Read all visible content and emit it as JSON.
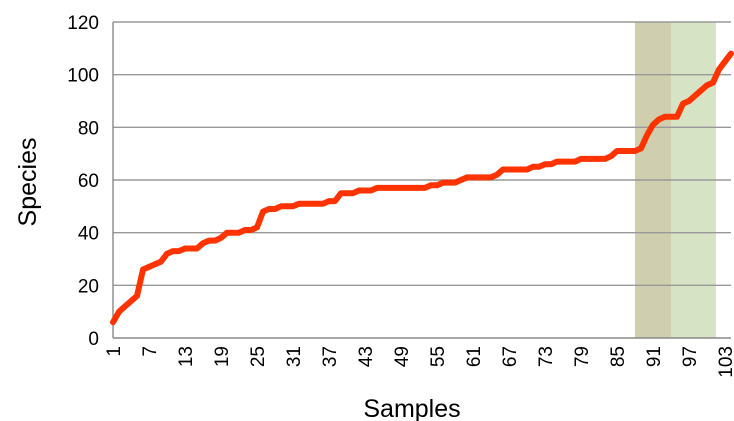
{
  "chart_data": {
    "type": "line",
    "title": "",
    "xlabel": "Samples",
    "ylabel": "Species",
    "ylim": [
      0,
      120
    ],
    "yticks": [
      0,
      20,
      40,
      60,
      80,
      100,
      120
    ],
    "xlim": [
      1,
      104
    ],
    "xtick_labels": [
      "1",
      "7",
      "13",
      "19",
      "25",
      "31",
      "37",
      "43",
      "49",
      "55",
      "61",
      "67",
      "73",
      "79",
      "85",
      "91",
      "97",
      "103"
    ],
    "grid": "horizontal",
    "legend": "none",
    "colors": {
      "line": "#ff3300",
      "highlight_dark": "#cfcfb0",
      "highlight_light": "#d6e3c4"
    },
    "highlight_bands": [
      {
        "from": 88,
        "to": 94,
        "color": "highlight_dark"
      },
      {
        "from": 94,
        "to": 101.5,
        "color": "highlight_light"
      }
    ],
    "series": [
      {
        "x": [
          1,
          2,
          3,
          4,
          5,
          6,
          7,
          8,
          9,
          10,
          11,
          12,
          13,
          14,
          15,
          16,
          17,
          18,
          19,
          20,
          21,
          22,
          23,
          24,
          25,
          26,
          27,
          28,
          29,
          30,
          31,
          32,
          33,
          34,
          35,
          36,
          37,
          38,
          39,
          40,
          41,
          42,
          43,
          44,
          45,
          46,
          47,
          48,
          49,
          50,
          51,
          52,
          53,
          54,
          55,
          56,
          57,
          58,
          59,
          60,
          61,
          62,
          63,
          64,
          65,
          66,
          67,
          68,
          69,
          70,
          71,
          72,
          73,
          74,
          75,
          76,
          77,
          78,
          79,
          80,
          81,
          82,
          83,
          84,
          85,
          86,
          87,
          88,
          89,
          90,
          91,
          92,
          93,
          94,
          95,
          96,
          97,
          98,
          99,
          100,
          101,
          102,
          103,
          104
        ],
        "values": [
          6,
          10,
          12,
          14,
          16,
          26,
          27,
          28,
          29,
          32,
          33,
          33,
          34,
          34,
          34,
          36,
          37,
          37,
          38,
          40,
          40,
          40,
          41,
          41,
          42,
          48,
          49,
          49,
          50,
          50,
          50,
          51,
          51,
          51,
          51,
          51,
          52,
          52,
          55,
          55,
          55,
          56,
          56,
          56,
          57,
          57,
          57,
          57,
          57,
          57,
          57,
          57,
          57,
          58,
          58,
          59,
          59,
          59,
          60,
          61,
          61,
          61,
          61,
          61,
          62,
          64,
          64,
          64,
          64,
          64,
          65,
          65,
          66,
          66,
          67,
          67,
          67,
          67,
          68,
          68,
          68,
          68,
          68,
          69,
          71,
          71,
          71,
          71,
          72,
          77,
          81,
          83,
          84,
          84,
          84,
          89,
          90,
          92,
          94,
          96,
          97,
          102,
          105,
          108
        ]
      }
    ]
  }
}
